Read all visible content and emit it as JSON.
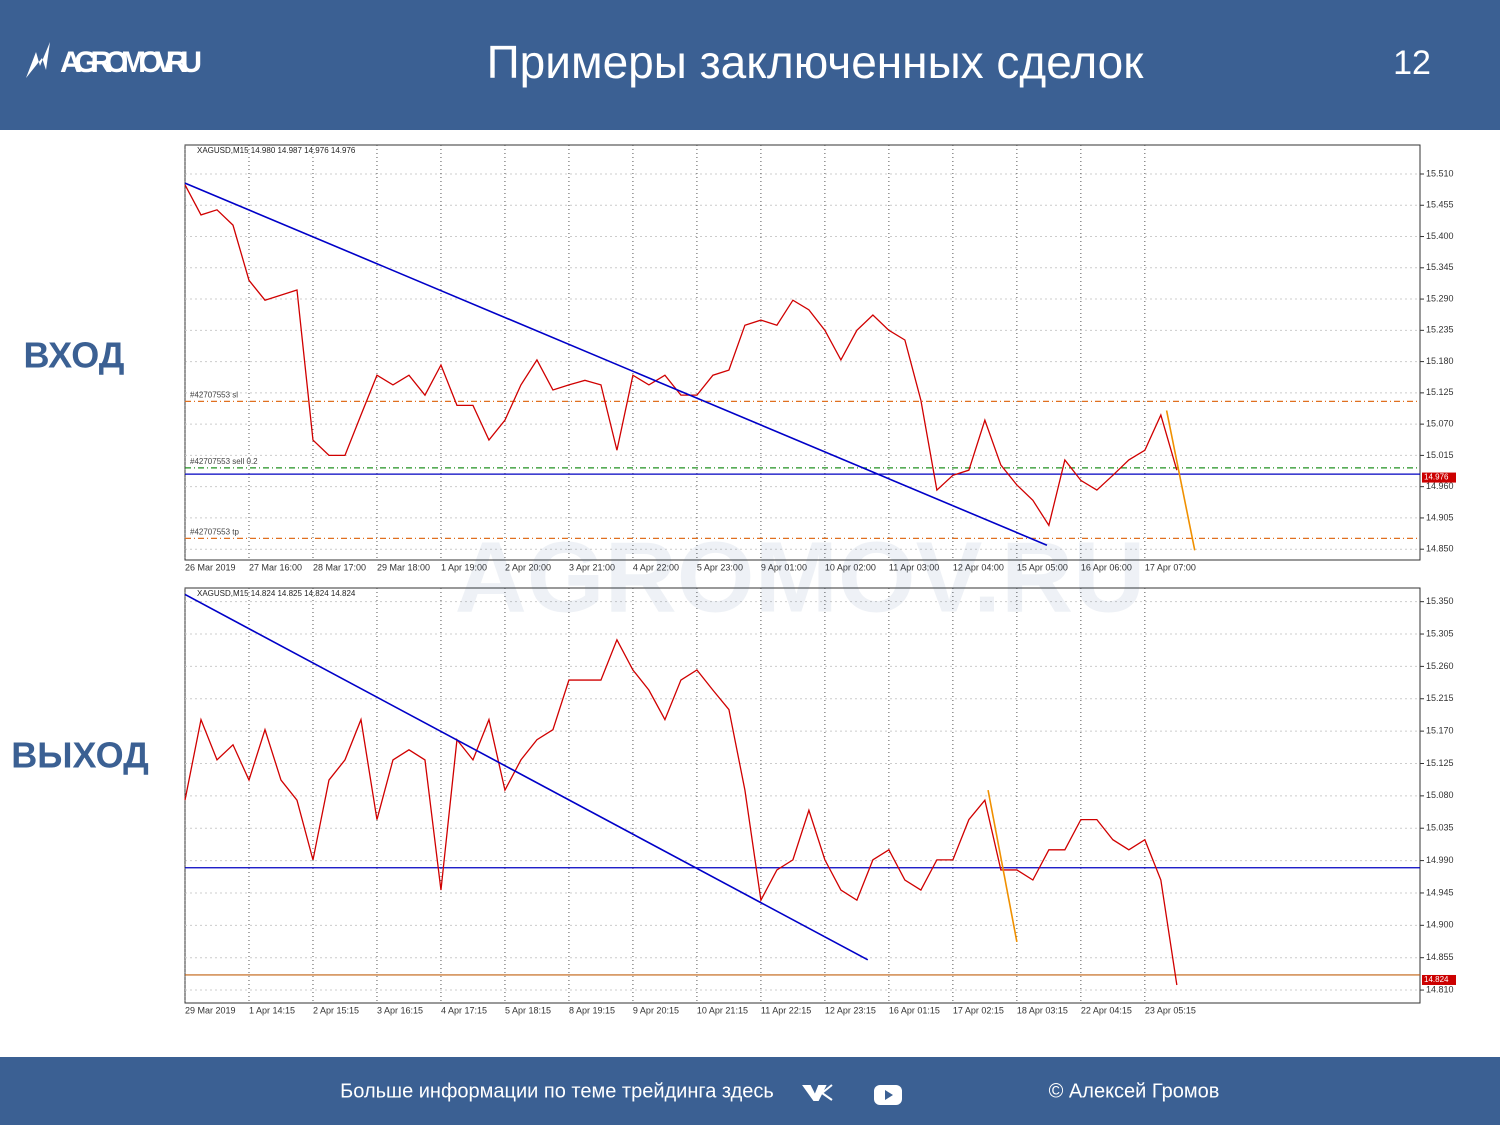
{
  "header": {
    "logo": "AGROMOV.RU",
    "title": "Примеры заключенных сделок",
    "page": 12
  },
  "labels": [
    "ВХОД",
    "ВЫХОД"
  ],
  "watermark": "AGROMOV.RU",
  "footer": {
    "text": "Больше информации по теме трейдинга здесь",
    "copyright": "© Алексей Громов"
  },
  "chart_data": [
    {
      "type": "line",
      "title": "XAGUSD,M15 14.980 14.987 14.976 14.976",
      "color": "#d00000",
      "x": [
        0,
        25,
        50,
        75,
        100,
        125,
        150,
        175,
        200,
        225,
        250,
        275,
        300,
        325,
        350,
        375,
        400,
        425,
        450,
        475,
        500,
        525,
        550,
        575,
        600,
        625,
        650,
        675,
        700,
        725,
        750,
        775,
        800,
        825,
        850,
        875,
        900,
        925,
        950,
        975,
        1000,
        1025,
        1050,
        1075,
        1100,
        1125,
        1150,
        1175,
        1200,
        1225,
        1250,
        1275,
        1300,
        1325,
        1350,
        1375,
        1400,
        1425,
        1450,
        1475,
        1500,
        1525,
        1550
      ],
      "values": [
        15.491,
        15.438,
        15.447,
        15.42,
        15.323,
        15.288,
        15.297,
        15.306,
        15.042,
        15.015,
        15.015,
        15.086,
        15.156,
        15.139,
        15.156,
        15.121,
        15.174,
        15.103,
        15.103,
        15.042,
        15.077,
        15.139,
        15.183,
        15.13,
        15.139,
        15.147,
        15.139,
        15.024,
        15.156,
        15.139,
        15.156,
        15.121,
        15.121,
        15.156,
        15.165,
        15.244,
        15.253,
        15.244,
        15.288,
        15.271,
        15.235,
        15.183,
        15.235,
        15.262,
        15.235,
        15.218,
        15.112,
        14.954,
        14.98,
        14.989,
        15.077,
        14.998,
        14.963,
        14.936,
        14.892,
        15.007,
        14.971,
        14.954,
        14.98,
        15.007,
        15.024,
        15.086,
        14.989
      ],
      "xlim": [
        0,
        1930
      ],
      "xticks": [
        {
          "value": 0,
          "label": "26 Mar 2019"
        },
        {
          "value": 100,
          "label": "27 Mar 16:00"
        },
        {
          "value": 200,
          "label": "28 Mar 17:00"
        },
        {
          "value": 300,
          "label": "29 Mar 18:00"
        },
        {
          "value": 400,
          "label": "1 Apr 19:00"
        },
        {
          "value": 500,
          "label": "2 Apr 20:00"
        },
        {
          "value": 600,
          "label": "3 Apr 21:00"
        },
        {
          "value": 700,
          "label": "4 Apr 22:00"
        },
        {
          "value": 800,
          "label": "5 Apr 23:00"
        },
        {
          "value": 900,
          "label": "9 Apr 01:00"
        },
        {
          "value": 1000,
          "label": "10 Apr 02:00"
        },
        {
          "value": 1100,
          "label": "11 Apr 03:00"
        },
        {
          "value": 1200,
          "label": "12 Apr 04:00"
        },
        {
          "value": 1300,
          "label": "15 Apr 05:00"
        },
        {
          "value": 1400,
          "label": "16 Apr 06:00"
        },
        {
          "value": 1500,
          "label": "17 Apr 07:00"
        }
      ],
      "ylim": [
        14.831,
        15.561
      ],
      "yticks": [
        {
          "value": 15.51,
          "label": "15.510"
        },
        15.455,
        {
          "value": 15.4,
          "label": "15.400"
        },
        15.345,
        {
          "value": 15.29,
          "label": "15.290"
        },
        15.235,
        {
          "value": 15.18,
          "label": "15.180"
        },
        15.125,
        {
          "value": 15.07,
          "label": "15.070"
        },
        15.015,
        {
          "value": 14.96,
          "label": "14.960"
        },
        14.905,
        {
          "value": 14.85,
          "label": "14.850"
        }
      ],
      "levels": [
        {
          "value": 15.11,
          "label": "#42707553 sl",
          "color": "#e07020"
        },
        {
          "value": 14.993,
          "label": "#42707553 sell 0.2",
          "color": "#209020"
        },
        {
          "value": 14.982,
          "color": "#0000c0"
        },
        {
          "value": 14.869,
          "label": "#42707553 tp",
          "color": "#e07020"
        }
      ],
      "trendlines": [
        {
          "x": [
            0,
            1347
          ],
          "values": [
            15.494,
            14.857
          ],
          "color": "#0000c8"
        },
        {
          "x": [
            1534,
            1578
          ],
          "values": [
            15.094,
            14.848
          ],
          "color": "#f09000"
        }
      ],
      "last": 14.976
    },
    {
      "type": "line",
      "title": "XAGUSD,M15 14.824 14.825 14.824 14.824",
      "color": "#d00000",
      "x": [
        0,
        25,
        50,
        75,
        100,
        125,
        150,
        175,
        200,
        225,
        250,
        275,
        300,
        325,
        350,
        375,
        400,
        425,
        450,
        475,
        500,
        525,
        550,
        575,
        600,
        625,
        650,
        675,
        700,
        725,
        750,
        775,
        800,
        825,
        850,
        875,
        900,
        925,
        950,
        975,
        1000,
        1025,
        1050,
        1075,
        1100,
        1125,
        1150,
        1175,
        1200,
        1225,
        1250,
        1275,
        1300,
        1325,
        1350,
        1375,
        1400,
        1425,
        1450,
        1475,
        1500,
        1525,
        1550
      ],
      "values": [
        15.074,
        15.186,
        15.13,
        15.151,
        15.102,
        15.172,
        15.102,
        15.074,
        14.991,
        15.102,
        15.13,
        15.186,
        15.047,
        15.13,
        15.144,
        15.13,
        14.949,
        15.158,
        15.13,
        15.186,
        15.088,
        15.13,
        15.158,
        15.172,
        15.241,
        15.241,
        15.241,
        15.297,
        15.255,
        15.227,
        15.186,
        15.241,
        15.255,
        15.227,
        15.2,
        15.088,
        14.935,
        14.977,
        14.991,
        15.06,
        14.991,
        14.949,
        14.935,
        14.991,
        15.005,
        14.963,
        14.949,
        14.991,
        14.991,
        15.047,
        15.074,
        14.977,
        14.977,
        14.963,
        15.005,
        15.005,
        15.047,
        15.047,
        15.019,
        15.005,
        15.019,
        14.963,
        14.817
      ],
      "xlim": [
        0,
        1930
      ],
      "xticks": [
        {
          "value": 0,
          "label": "29 Mar 2019"
        },
        {
          "value": 100,
          "label": "1 Apr 14:15"
        },
        {
          "value": 200,
          "label": "2 Apr 15:15"
        },
        {
          "value": 300,
          "label": "3 Apr 16:15"
        },
        {
          "value": 400,
          "label": "4 Apr 17:15"
        },
        {
          "value": 500,
          "label": "5 Apr 18:15"
        },
        {
          "value": 600,
          "label": "8 Apr 19:15"
        },
        {
          "value": 700,
          "label": "9 Apr 20:15"
        },
        {
          "value": 800,
          "label": "10 Apr 21:15"
        },
        {
          "value": 900,
          "label": "11 Apr 22:15"
        },
        {
          "value": 1000,
          "label": "12 Apr 23:15"
        },
        {
          "value": 1100,
          "label": "16 Apr 01:15"
        },
        {
          "value": 1200,
          "label": "17 Apr 02:15"
        },
        {
          "value": 1300,
          "label": "18 Apr 03:15"
        },
        {
          "value": 1400,
          "label": "22 Apr 04:15"
        },
        {
          "value": 1500,
          "label": "23 Apr 05:15"
        }
      ],
      "ylim": [
        14.792,
        15.369
      ],
      "yticks": [
        {
          "value": 15.35,
          "label": "15.350"
        },
        15.305,
        {
          "value": 15.26,
          "label": "15.260"
        },
        15.215,
        {
          "value": 15.17,
          "label": "15.170"
        },
        15.125,
        {
          "value": 15.08,
          "label": "15.080"
        },
        15.035,
        {
          "value": 14.99,
          "label": "14.990"
        },
        14.945,
        {
          "value": 14.9,
          "label": "14.900"
        },
        14.855,
        {
          "value": 14.81,
          "label": "14.810"
        }
      ],
      "levels": [
        {
          "value": 14.98,
          "color": "#0000c0"
        },
        {
          "value": 14.831,
          "color": "#c06010"
        }
      ],
      "trendlines": [
        {
          "x": [
            0,
            1067
          ],
          "values": [
            15.36,
            14.852
          ],
          "color": "#0000c8"
        },
        {
          "x": [
            1255,
            1300
          ],
          "values": [
            15.088,
            14.877
          ],
          "color": "#f09000"
        }
      ],
      "last": 14.824
    }
  ]
}
